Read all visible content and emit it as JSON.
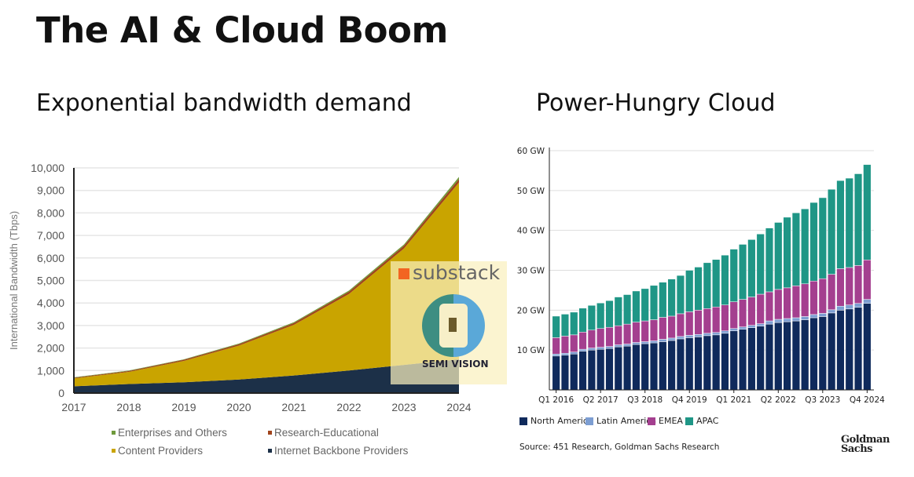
{
  "title": "The AI & Cloud Boom",
  "watermark": {
    "brand": "substack",
    "name": "SEMI VISION"
  },
  "chart_data": [
    {
      "type": "area",
      "stacked": true,
      "title": "Exponential bandwidth demand",
      "ylabel": "International Bandwidth (Tbps)",
      "xlabel": "",
      "x": [
        "2017",
        "2018",
        "2019",
        "2020",
        "2021",
        "2022",
        "2023",
        "2024"
      ],
      "ylim": [
        0,
        10000
      ],
      "yticks": [
        "0",
        "1,000",
        "2,000",
        "3,000",
        "4,000",
        "5,000",
        "6,000",
        "7,000",
        "8,000",
        "9,000",
        "10,000"
      ],
      "series": [
        {
          "name": "Internet Backbone Providers",
          "color": "#1c3048",
          "values": [
            300,
            400,
            480,
            600,
            780,
            1000,
            1250,
            1500
          ]
        },
        {
          "name": "Content Providers",
          "color": "#c9a400",
          "values": [
            350,
            540,
            950,
            1510,
            2250,
            3400,
            5170,
            7850
          ]
        },
        {
          "name": "Research-Educational",
          "color": "#a0441c",
          "values": [
            30,
            40,
            50,
            60,
            80,
            100,
            120,
            150
          ]
        },
        {
          "name": "Enterprises and Others",
          "color": "#6f9a3c",
          "values": [
            20,
            20,
            20,
            30,
            40,
            50,
            60,
            100
          ]
        }
      ],
      "legend_order": [
        3,
        2,
        1,
        0
      ],
      "legend": "bottom",
      "grid": true
    },
    {
      "type": "bar",
      "stacked": true,
      "title": "Power-Hungry Cloud",
      "ylim": [
        0,
        60
      ],
      "yticks": [
        "10 GW",
        "20 GW",
        "30 GW",
        "40 GW",
        "50 GW",
        "60 GW"
      ],
      "xtick_labels": [
        "Q1 2016",
        "Q2 2017",
        "Q3 2018",
        "Q4 2019",
        "Q1 2021",
        "Q2 2022",
        "Q3 2023",
        "Q4 2024"
      ],
      "xtick_every": 5,
      "n_quarters": 36,
      "series": [
        {
          "name": "North America",
          "color": "#0f2a5c",
          "values": [
            8.5,
            8.7,
            9.0,
            9.7,
            10.0,
            10.2,
            10.4,
            10.8,
            11.0,
            11.4,
            11.6,
            11.8,
            12.1,
            12.4,
            12.8,
            13.1,
            13.3,
            13.6,
            13.8,
            14.2,
            14.8,
            15.2,
            15.6,
            16.0,
            16.5,
            16.9,
            17.1,
            17.3,
            17.6,
            18.1,
            18.4,
            19.3,
            20.0,
            20.3,
            20.7,
            21.7
          ]
        },
        {
          "name": "Latin America",
          "color": "#7d9ed2",
          "values": [
            0.5,
            0.5,
            0.5,
            0.5,
            0.5,
            0.5,
            0.5,
            0.5,
            0.5,
            0.5,
            0.5,
            0.5,
            0.6,
            0.6,
            0.6,
            0.6,
            0.6,
            0.6,
            0.6,
            0.6,
            0.6,
            0.6,
            0.6,
            0.6,
            0.8,
            0.8,
            0.8,
            0.8,
            0.8,
            0.8,
            0.8,
            0.8,
            1.0,
            1.0,
            1.0,
            1.0
          ]
        },
        {
          "name": "EMEA",
          "color": "#a43f8f",
          "values": [
            4.1,
            4.3,
            4.3,
            4.3,
            4.5,
            4.7,
            4.8,
            4.8,
            5.0,
            5.1,
            5.2,
            5.3,
            5.5,
            5.5,
            5.7,
            5.9,
            6.1,
            6.2,
            6.4,
            6.5,
            6.7,
            6.9,
            7.1,
            7.4,
            7.3,
            7.5,
            7.7,
            8.0,
            8.2,
            8.4,
            8.7,
            8.9,
            9.4,
            9.4,
            9.5,
            9.9
          ]
        },
        {
          "name": "APAC",
          "color": "#1f9686",
          "values": [
            5.4,
            5.5,
            5.7,
            6.0,
            6.2,
            6.4,
            6.7,
            7.2,
            7.4,
            7.8,
            8.1,
            8.6,
            8.8,
            9.3,
            9.6,
            10.4,
            10.8,
            11.5,
            11.9,
            12.5,
            13.2,
            13.8,
            14.4,
            15.1,
            16.0,
            16.8,
            17.7,
            18.3,
            18.8,
            19.7,
            20.3,
            21.3,
            22.1,
            22.4,
            23.0,
            23.9
          ]
        }
      ],
      "source": "Source: 451 Research, Goldman Sachs Research",
      "brand": "Goldman Sachs",
      "legend": "bottom-left",
      "grid": true
    }
  ]
}
